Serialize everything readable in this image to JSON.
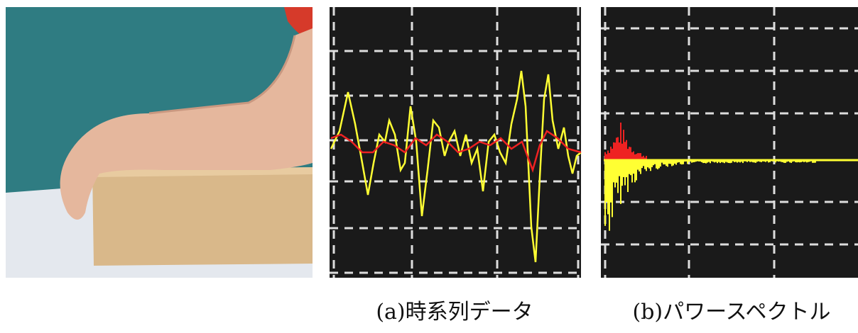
{
  "captions": {
    "a": "(a)時系列データ",
    "b": "(b)パワースペクトル"
  }
}
